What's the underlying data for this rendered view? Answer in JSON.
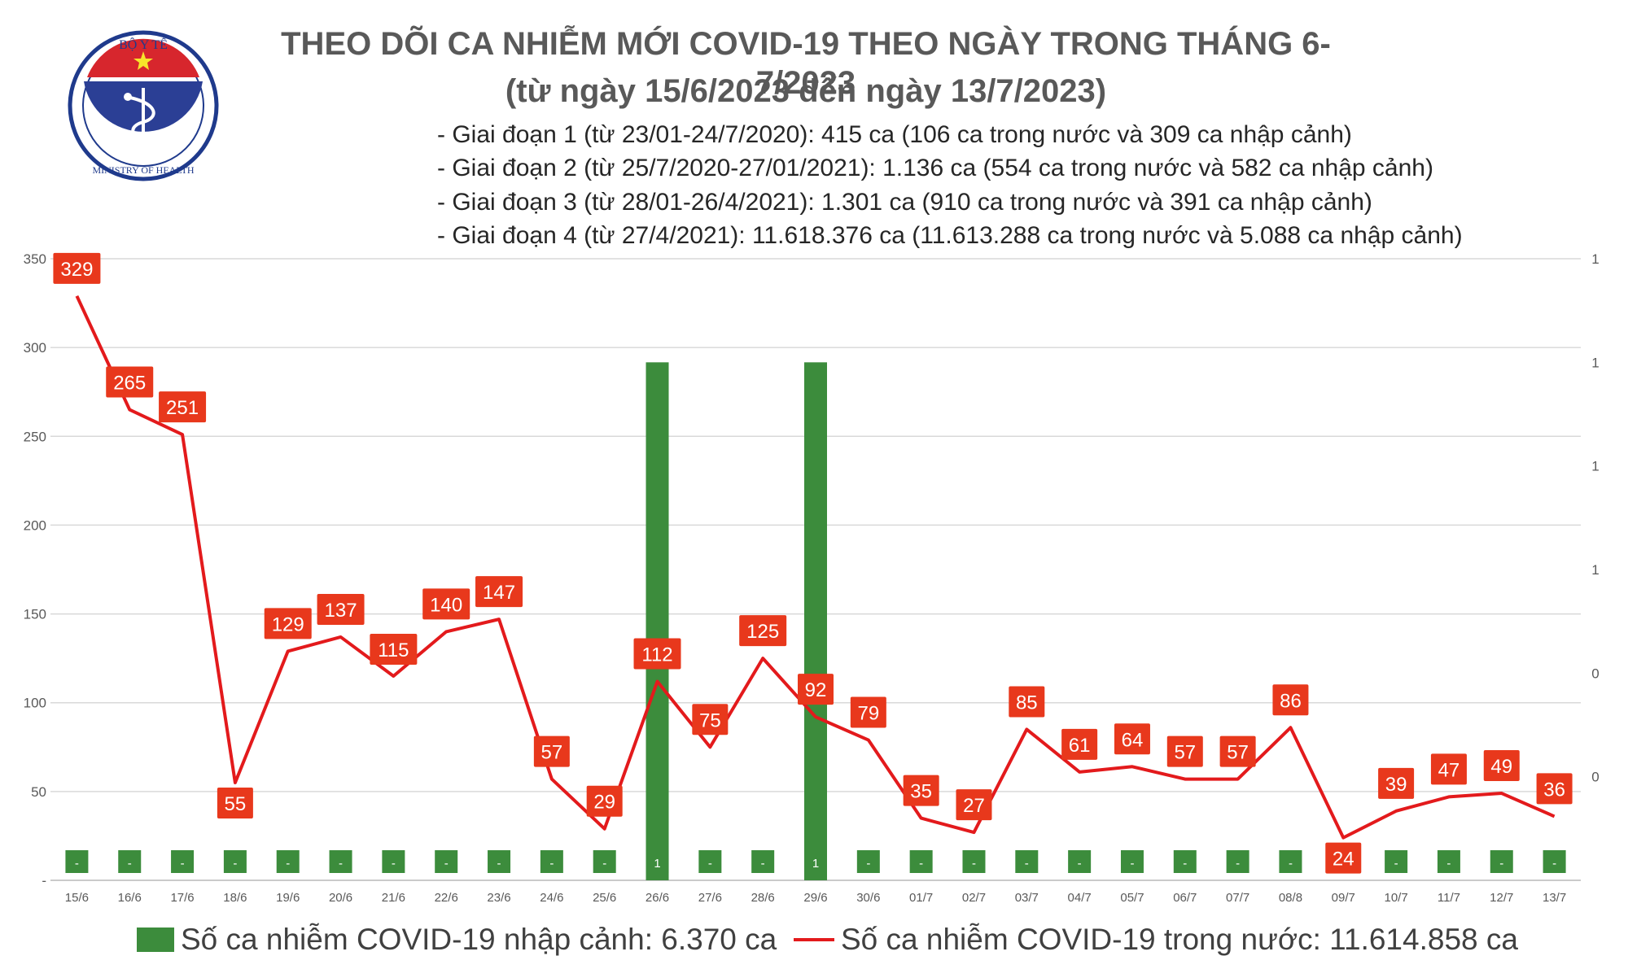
{
  "logo": {
    "top_text": "BỘ Y TẾ",
    "bottom_text": "MINISTRY OF HEALTH",
    "colors": {
      "ring": "#1f3a8c",
      "inner": "#2b3f95",
      "flag": "#d7262d",
      "star": "#f7e52a"
    }
  },
  "header": {
    "title": "THEO DÕI CA NHIỄM MỚI COVID-19 THEO NGÀY TRONG THÁNG 6-7/2023",
    "subtitle": "(từ ngày 15/6/2023 đến ngày 13/7/2023)"
  },
  "phases": [
    "- Giai đoạn 1 (từ 23/01-24/7/2020): 415 ca (106 ca trong nước và 309 ca nhập cảnh)",
    "- Giai đoạn 2 (từ 25/7/2020-27/01/2021): 1.136 ca (554 ca trong nước và 582 ca nhập cảnh)",
    "- Giai đoạn 3 (từ 28/01-26/4/2021): 1.301 ca (910 ca trong nước và 391 ca nhập cảnh)",
    "- Giai đoạn 4 (từ 27/4/2021): 11.618.376 ca (11.613.288 ca trong nước và 5.088 ca nhập cảnh)"
  ],
  "legend": {
    "imported": "Số ca nhiễm COVID-19 nhập cảnh: 6.370 ca",
    "domestic": "Số ca nhiễm COVID-19 trong nước: 11.614.858 ca"
  },
  "chart_data": {
    "type": "bar+line",
    "categories": [
      "15/6",
      "16/6",
      "17/6",
      "18/6",
      "19/6",
      "20/6",
      "21/6",
      "22/6",
      "23/6",
      "24/6",
      "25/6",
      "26/6",
      "27/6",
      "28/6",
      "29/6",
      "30/6",
      "01/7",
      "02/7",
      "03/7",
      "04/7",
      "05/7",
      "06/7",
      "07/7",
      "08/8",
      "09/7",
      "10/7",
      "11/7",
      "12/7",
      "13/7"
    ],
    "series": [
      {
        "name": "Số ca nhiễm COVID-19 nhập cảnh: 6.370 ca",
        "type": "bar",
        "axis": "right",
        "color": "#3c8c3c",
        "values": [
          0,
          0,
          0,
          0,
          0,
          0,
          0,
          0,
          0,
          0,
          0,
          1,
          0,
          0,
          1,
          0,
          0,
          0,
          0,
          0,
          0,
          0,
          0,
          0,
          0,
          0,
          0,
          0,
          0
        ],
        "labels": [
          "-",
          "-",
          "-",
          "-",
          "-",
          "-",
          "-",
          "-",
          "-",
          "-",
          "-",
          "1",
          "-",
          "-",
          "1",
          "-",
          "-",
          "-",
          "-",
          "-",
          "-",
          "-",
          "-",
          "-",
          "-",
          "-",
          "-",
          "-",
          "-"
        ]
      },
      {
        "name": "Số ca nhiễm COVID-19 trong nước: 11.614.858 ca",
        "type": "line",
        "axis": "left",
        "color": "#e31a1c",
        "values": [
          329,
          265,
          251,
          55,
          129,
          137,
          115,
          140,
          147,
          57,
          29,
          112,
          75,
          125,
          92,
          79,
          35,
          27,
          85,
          61,
          64,
          57,
          57,
          86,
          24,
          39,
          47,
          49,
          36
        ]
      }
    ],
    "left_axis": {
      "ylim": [
        0,
        350
      ],
      "ticks": [
        "-",
        "50",
        "100",
        "150",
        "200",
        "250",
        "300",
        "350"
      ],
      "tick_values": [
        0,
        50,
        100,
        150,
        200,
        250,
        300,
        350
      ]
    },
    "right_axis": {
      "ylim": [
        0,
        1.2
      ],
      "ticks": [
        "0",
        "0",
        "1",
        "1",
        "1",
        "1"
      ],
      "tick_values": [
        0.2,
        0.4,
        0.6,
        0.8,
        1.0,
        1.2
      ]
    },
    "grid": true,
    "legend_position": "bottom"
  }
}
